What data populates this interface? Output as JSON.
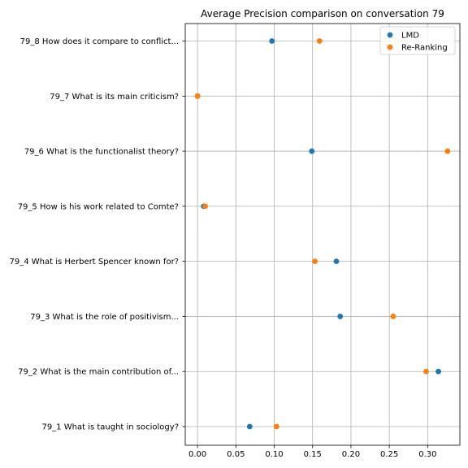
{
  "chart_data": {
    "type": "scatter",
    "title": "Average Precision comparison on conversation 79",
    "xlabel": "",
    "ylabel": "",
    "xlim": [
      -0.016,
      0.342
    ],
    "x_ticks": [
      "0.00",
      "0.05",
      "0.10",
      "0.15",
      "0.20",
      "0.25",
      "0.30"
    ],
    "x_tick_values": [
      0.0,
      0.05,
      0.1,
      0.15,
      0.2,
      0.25,
      0.3
    ],
    "grid": true,
    "legend_position": "top-right",
    "categories": [
      "79_1 What is taught in sociology?",
      "79_2 What is the main contribution of...",
      "79_3 What is the role of positivism...",
      "79_4 What is Herbert Spencer known for?",
      "79_5 How is his work related to Comte?",
      "79_6 What is the functionalist theory?",
      "79_7 What is its main criticism?",
      "79_8 How does it compare to conflict..."
    ],
    "series": [
      {
        "name": "LMD",
        "color": "#1f77b4",
        "values": [
          0.068,
          0.314,
          0.186,
          0.181,
          0.008,
          0.149,
          0.0,
          0.097
        ]
      },
      {
        "name": "Re-Ranking",
        "color": "#ff7f0e",
        "values": [
          0.103,
          0.298,
          0.255,
          0.153,
          0.01,
          0.326,
          0.0,
          0.159
        ]
      }
    ]
  }
}
